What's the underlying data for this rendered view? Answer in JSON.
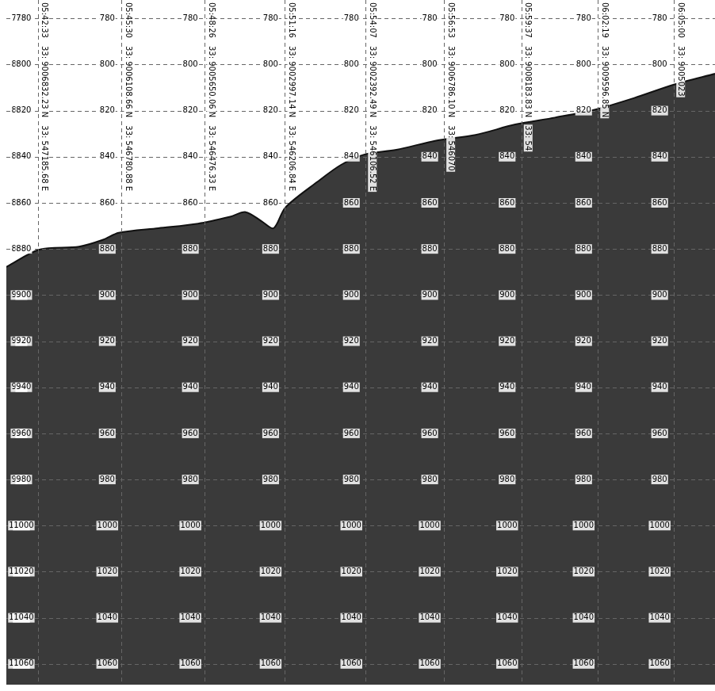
{
  "chart_data": {
    "type": "line",
    "x": [
      20486,
      20556,
      20640,
      20691,
      20724,
      20808,
      20892,
      20960,
      20993,
      21027,
      21052,
      21077,
      21144,
      21195,
      21245,
      21312,
      21396,
      21480,
      21564,
      21648,
      21732,
      21816,
      21900,
      21987
    ],
    "values": [
      887.8,
      880.3,
      879,
      876,
      873,
      871,
      869,
      866,
      864,
      868,
      871,
      862,
      851,
      843.5,
      839,
      837,
      833,
      830.5,
      826,
      823,
      819.6,
      814.5,
      808.7,
      804
    ],
    "color": "#3a3a3a",
    "xlim": [
      20486,
      21987
    ],
    "xticks": [
      {
        "value": 20553,
        "label": "05:42:33"
      },
      {
        "value": 20730,
        "label": "05:45:30"
      },
      {
        "value": 20906,
        "label": "05:48:26"
      },
      {
        "value": 21076,
        "label": "05:51:16"
      },
      {
        "value": 21247,
        "label": "05:54:07"
      },
      {
        "value": 21413,
        "label": "05:56:53"
      },
      {
        "value": 21577,
        "label": "05:59:37"
      },
      {
        "value": 21739,
        "label": "06:02:19"
      },
      {
        "value": 21900,
        "label": "06:05:00"
      }
    ],
    "positions": [
      {
        "north": "33: 9006832.23 N",
        "east": "33: 547185.68 E"
      },
      {
        "north": "33: 9006108.66 N",
        "east": "33: 546780.88 E"
      },
      {
        "north": "33: 9005650.06 N",
        "east": "33: 546476.33 E"
      },
      {
        "north": "33: 9002997.14 N",
        "east": "33: 546206.84 E"
      },
      {
        "north": "33: 9002392.49 N",
        "east": "33: 546106.52 E"
      },
      {
        "north": "33: 9006786.10 N",
        "east": "33: 546070"
      },
      {
        "north": "33: 9008183.83 N",
        "east": "33: 54"
      },
      {
        "north": "33: 9009596.85 N",
        "east": null
      },
      {
        "north": "33: 9005023",
        "east": null
      }
    ],
    "ylim": [
      772,
      1069
    ],
    "yticks": [
      780,
      800,
      820,
      840,
      860,
      880,
      900,
      920,
      940,
      960,
      980,
      1000,
      1020,
      1040,
      1060
    ],
    "grid": true
  }
}
